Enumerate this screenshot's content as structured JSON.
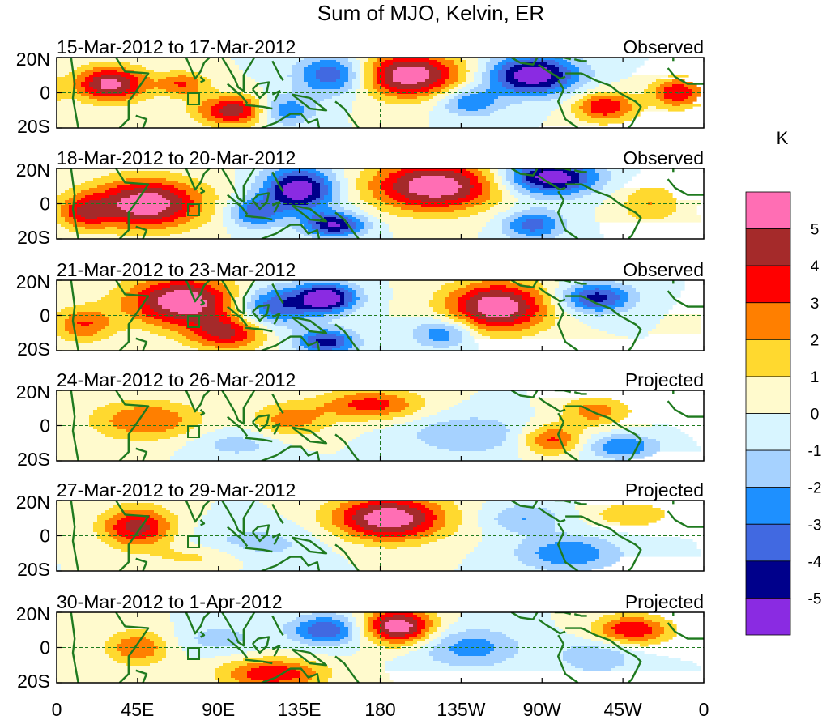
{
  "chart_data": {
    "type": "heatmap",
    "title": "Sum of MJO, Kelvin, ER",
    "x_ticks": [
      "0",
      "45E",
      "90E",
      "135E",
      "180",
      "135W",
      "90W",
      "45W",
      "0"
    ],
    "y_ticks": [
      "20N",
      "0",
      "20S"
    ],
    "panels": [
      {
        "date_range": "15-Mar-2012 to 17-Mar-2012",
        "status": "Observed"
      },
      {
        "date_range": "18-Mar-2012 to 20-Mar-2012",
        "status": "Observed"
      },
      {
        "date_range": "21-Mar-2012 to 23-Mar-2012",
        "status": "Observed"
      },
      {
        "date_range": "24-Mar-2012 to 26-Mar-2012",
        "status": "Projected"
      },
      {
        "date_range": "27-Mar-2012 to 29-Mar-2012",
        "status": "Projected"
      },
      {
        "date_range": "30-Mar-2012 to 1-Apr-2012",
        "status": "Projected"
      }
    ],
    "colorbar": {
      "units": "K",
      "labels": [
        "5",
        "4",
        "3",
        "2",
        "1",
        "0",
        "-1",
        "-2",
        "-3",
        "-4",
        "-5"
      ],
      "colors": [
        "#ff6eb4",
        "#a52a2a",
        "#ff0000",
        "#ff7f00",
        "#ffd92f",
        "#fffacd",
        "#d8f5ff",
        "#a6d2ff",
        "#1e90ff",
        "#4169e1",
        "#00008b",
        "#8a2be2"
      ]
    },
    "anomaly_features": [
      {
        "panel": 0,
        "lon": 30,
        "lat": 5,
        "amp": 5.5,
        "slon": 14,
        "slat": 7
      },
      {
        "panel": 0,
        "lon": 70,
        "lat": 5,
        "amp": 3,
        "slon": 10,
        "slat": 5
      },
      {
        "panel": 0,
        "lon": 100,
        "lat": -10,
        "amp": 5,
        "slon": 15,
        "slat": 6
      },
      {
        "panel": 0,
        "lon": 155,
        "lat": 10,
        "amp": -4.5,
        "slon": 15,
        "slat": 8
      },
      {
        "panel": 0,
        "lon": 125,
        "lat": -10,
        "amp": -3.5,
        "slon": 12,
        "slat": 6
      },
      {
        "panel": 0,
        "lon": 195,
        "lat": 10,
        "amp": 6,
        "slon": 22,
        "slat": 9
      },
      {
        "panel": 0,
        "lon": 265,
        "lat": 10,
        "amp": -6,
        "slon": 18,
        "slat": 8
      },
      {
        "panel": 0,
        "lon": 230,
        "lat": -5,
        "amp": -3,
        "slon": 12,
        "slat": 6
      },
      {
        "panel": 0,
        "lon": 305,
        "lat": -8,
        "amp": 4,
        "slon": 12,
        "slat": 6
      },
      {
        "panel": 0,
        "lon": 345,
        "lat": 0,
        "amp": 4,
        "slon": 10,
        "slat": 6
      },
      {
        "panel": 1,
        "lon": 50,
        "lat": 0,
        "amp": 6,
        "slon": 22,
        "slat": 10
      },
      {
        "panel": 1,
        "lon": 15,
        "lat": -5,
        "amp": 3,
        "slon": 10,
        "slat": 7
      },
      {
        "panel": 1,
        "lon": 135,
        "lat": 8,
        "amp": -6,
        "slon": 14,
        "slat": 9
      },
      {
        "panel": 1,
        "lon": 110,
        "lat": -5,
        "amp": -3.5,
        "slon": 10,
        "slat": 6
      },
      {
        "panel": 1,
        "lon": 155,
        "lat": -12,
        "amp": -5,
        "slon": 12,
        "slat": 5
      },
      {
        "panel": 1,
        "lon": 210,
        "lat": 10,
        "amp": 6,
        "slon": 25,
        "slat": 10
      },
      {
        "panel": 1,
        "lon": 275,
        "lat": 15,
        "amp": -6,
        "slon": 18,
        "slat": 7
      },
      {
        "panel": 1,
        "lon": 265,
        "lat": -12,
        "amp": -3.5,
        "slon": 12,
        "slat": 6
      },
      {
        "panel": 1,
        "lon": 330,
        "lat": 0,
        "amp": 2,
        "slon": 12,
        "slat": 8
      },
      {
        "panel": 2,
        "lon": 70,
        "lat": 8,
        "amp": 6,
        "slon": 22,
        "slat": 10
      },
      {
        "panel": 2,
        "lon": 95,
        "lat": -10,
        "amp": 4,
        "slon": 15,
        "slat": 7
      },
      {
        "panel": 2,
        "lon": 120,
        "lat": 5,
        "amp": -4,
        "slon": 15,
        "slat": 8
      },
      {
        "panel": 2,
        "lon": 150,
        "lat": 10,
        "amp": -6,
        "slon": 12,
        "slat": 6
      },
      {
        "panel": 2,
        "lon": 150,
        "lat": -15,
        "amp": -4.5,
        "slon": 12,
        "slat": 5
      },
      {
        "panel": 2,
        "lon": 245,
        "lat": 5,
        "amp": 6,
        "slon": 20,
        "slat": 10
      },
      {
        "panel": 2,
        "lon": 215,
        "lat": -10,
        "amp": -3,
        "slon": 12,
        "slat": 6
      },
      {
        "panel": 2,
        "lon": 300,
        "lat": 10,
        "amp": -4.5,
        "slon": 14,
        "slat": 6
      },
      {
        "panel": 2,
        "lon": 15,
        "lat": -5,
        "amp": 3,
        "slon": 12,
        "slat": 7
      },
      {
        "panel": 3,
        "lon": 50,
        "lat": 3,
        "amp": 3,
        "slon": 22,
        "slat": 8
      },
      {
        "panel": 3,
        "lon": 130,
        "lat": 3,
        "amp": 2.5,
        "slon": 15,
        "slat": 7
      },
      {
        "panel": 3,
        "lon": 175,
        "lat": 12,
        "amp": 3.5,
        "slon": 20,
        "slat": 6
      },
      {
        "panel": 3,
        "lon": 100,
        "lat": -10,
        "amp": -1.5,
        "slon": 18,
        "slat": 6
      },
      {
        "panel": 3,
        "lon": 230,
        "lat": -5,
        "amp": -2,
        "slon": 25,
        "slat": 8
      },
      {
        "panel": 3,
        "lon": 275,
        "lat": -8,
        "amp": 3.5,
        "slon": 12,
        "slat": 6
      },
      {
        "panel": 3,
        "lon": 300,
        "lat": 8,
        "amp": 2.5,
        "slon": 14,
        "slat": 6
      },
      {
        "panel": 3,
        "lon": 315,
        "lat": -12,
        "amp": -3,
        "slon": 14,
        "slat": 5
      },
      {
        "panel": 4,
        "lon": 45,
        "lat": 5,
        "amp": 4.5,
        "slon": 14,
        "slat": 8
      },
      {
        "panel": 4,
        "lon": 185,
        "lat": 10,
        "amp": 6,
        "slon": 22,
        "slat": 9
      },
      {
        "panel": 4,
        "lon": 110,
        "lat": -5,
        "amp": -1.5,
        "slon": 25,
        "slat": 8
      },
      {
        "panel": 4,
        "lon": 80,
        "lat": -12,
        "amp": 1.5,
        "slon": 20,
        "slat": 5
      },
      {
        "panel": 4,
        "lon": 285,
        "lat": -10,
        "amp": -3,
        "slon": 20,
        "slat": 7
      },
      {
        "panel": 4,
        "lon": 260,
        "lat": 10,
        "amp": -2,
        "slon": 15,
        "slat": 6
      },
      {
        "panel": 4,
        "lon": 320,
        "lat": 12,
        "amp": 2,
        "slon": 15,
        "slat": 5
      },
      {
        "panel": 5,
        "lon": 45,
        "lat": 0,
        "amp": 3,
        "slon": 12,
        "slat": 7
      },
      {
        "panel": 5,
        "lon": 190,
        "lat": 12,
        "amp": 6,
        "slon": 14,
        "slat": 7
      },
      {
        "panel": 5,
        "lon": 150,
        "lat": 10,
        "amp": -4,
        "slon": 14,
        "slat": 6
      },
      {
        "panel": 5,
        "lon": 120,
        "lat": -15,
        "amp": 4,
        "slon": 20,
        "slat": 6
      },
      {
        "panel": 5,
        "lon": 230,
        "lat": 0,
        "amp": -2.5,
        "slon": 20,
        "slat": 8
      },
      {
        "panel": 5,
        "lon": 320,
        "lat": 10,
        "amp": 4,
        "slon": 15,
        "slat": 6
      },
      {
        "panel": 5,
        "lon": 300,
        "lat": -5,
        "amp": -2,
        "slon": 15,
        "slat": 7
      },
      {
        "panel": 5,
        "lon": 90,
        "lat": 5,
        "amp": -1.5,
        "slon": 15,
        "slat": 6
      }
    ]
  }
}
